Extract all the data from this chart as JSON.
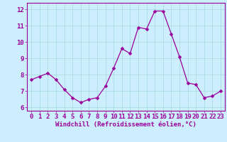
{
  "x": [
    0,
    1,
    2,
    3,
    4,
    5,
    6,
    7,
    8,
    9,
    10,
    11,
    12,
    13,
    14,
    15,
    16,
    17,
    18,
    19,
    20,
    21,
    22,
    23
  ],
  "y": [
    7.7,
    7.9,
    8.1,
    7.7,
    7.1,
    6.6,
    6.3,
    6.5,
    6.6,
    7.3,
    8.4,
    9.6,
    9.3,
    10.9,
    10.8,
    11.9,
    11.9,
    10.5,
    9.1,
    7.5,
    7.4,
    6.6,
    6.7,
    7.0
  ],
  "line_color": "#9B009B",
  "marker_color": "#9B009B",
  "bg_color": "#cceeff",
  "grid_color": "#aadddd",
  "xlabel": "Windchill (Refroidissement éolien,°C)",
  "xlabel_color": "#9B009B",
  "tick_color": "#9B009B",
  "ylim": [
    5.8,
    12.4
  ],
  "xlim": [
    -0.5,
    23.5
  ],
  "yticks": [
    6,
    7,
    8,
    9,
    10,
    11,
    12
  ],
  "xticks": [
    0,
    1,
    2,
    3,
    4,
    5,
    6,
    7,
    8,
    9,
    10,
    11,
    12,
    13,
    14,
    15,
    16,
    17,
    18,
    19,
    20,
    21,
    22,
    23
  ],
  "font_size": 6.5,
  "marker_size": 2.5,
  "line_width": 0.9
}
